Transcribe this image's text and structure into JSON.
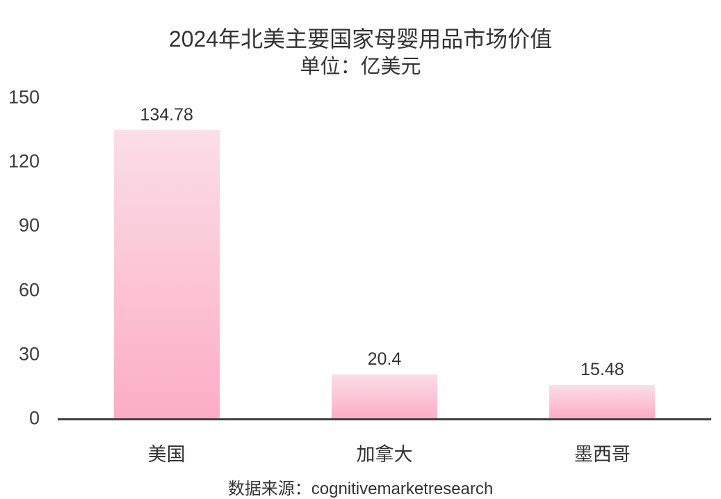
{
  "chart_data": {
    "type": "bar",
    "title": "2024年北美主要国家母婴用品市场价值",
    "subtitle": "单位：亿美元",
    "categories": [
      "美国",
      "加拿大",
      "墨西哥"
    ],
    "values": [
      134.78,
      20.4,
      15.48
    ],
    "value_labels": [
      "134.78",
      "20.4",
      "15.48"
    ],
    "ylim": [
      0,
      150
    ],
    "yticks": [
      0,
      30,
      60,
      90,
      120,
      150
    ],
    "grid": false,
    "legend": false,
    "bar_color_top": "#fbdee8",
    "bar_color_bottom": "#fcadc5",
    "axis_line_color": "#404040",
    "text_color": "#333333"
  },
  "source": "数据来源：cognitivemarketresearch"
}
